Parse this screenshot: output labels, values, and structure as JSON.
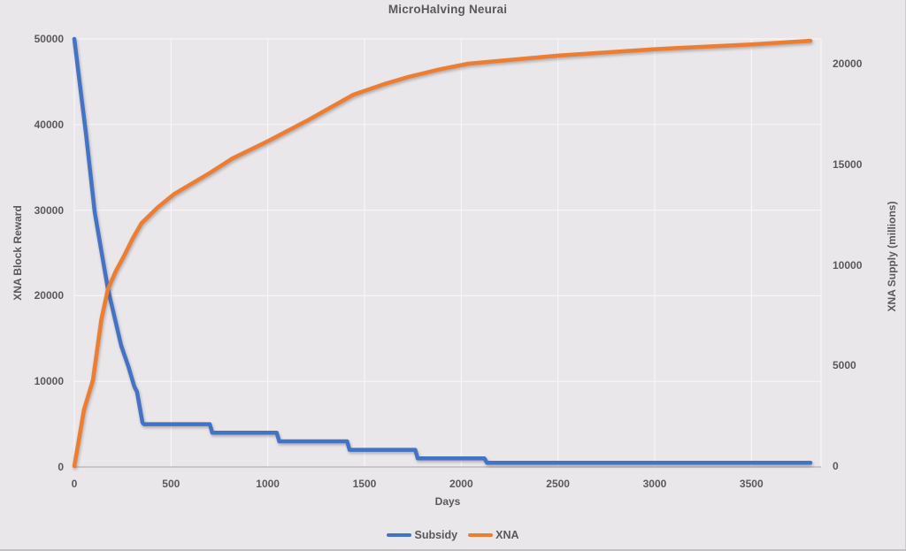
{
  "title": "MicroHalving Neurai",
  "colors": {
    "background": "#EAE7EA",
    "text": "#595959",
    "gridline": "#F7F5F7",
    "axis_line": "#BDBABD",
    "subsidy_blue": "#4472C4",
    "xna_orange": "#ED7D31"
  },
  "chart_data": {
    "type": "line",
    "title": "MicroHalving Neurai",
    "xlabel": "Days",
    "ylabel_left": "XNA Block Reward",
    "ylabel_right": "XNA Supply (millions)",
    "grid": true,
    "legend_position": "bottom",
    "xlim": [
      0,
      3860
    ],
    "ylim_left": [
      0,
      50000
    ],
    "ylim_right": [
      0,
      21250
    ],
    "x_ticks": [
      0,
      500,
      1000,
      1500,
      2000,
      2500,
      3000,
      3500
    ],
    "y_ticks_left": [
      0,
      10000,
      20000,
      30000,
      40000,
      50000
    ],
    "y_ticks_right": [
      0,
      5000,
      10000,
      15000,
      20000
    ],
    "series": [
      {
        "name": "Subsidy",
        "axis": "left",
        "color": "#4472C4",
        "points": [
          [
            0,
            50000
          ],
          [
            30,
            44400
          ],
          [
            60,
            39000
          ],
          [
            105,
            29800
          ],
          [
            140,
            25200
          ],
          [
            174,
            20800
          ],
          [
            210,
            17300
          ],
          [
            242,
            14200
          ],
          [
            280,
            11700
          ],
          [
            310,
            9400
          ],
          [
            324,
            8800
          ],
          [
            352,
            5200
          ],
          [
            360,
            5000
          ],
          [
            700,
            5000
          ],
          [
            713,
            4000
          ],
          [
            1046,
            4000
          ],
          [
            1059,
            3000
          ],
          [
            1410,
            3000
          ],
          [
            1423,
            2000
          ],
          [
            1762,
            2000
          ],
          [
            1775,
            1000
          ],
          [
            2120,
            1000
          ],
          [
            2133,
            500
          ],
          [
            3805,
            500
          ]
        ]
      },
      {
        "name": "XNA",
        "axis": "right",
        "color": "#ED7D31",
        "points": [
          [
            0,
            0
          ],
          [
            25,
            1400
          ],
          [
            50,
            2800
          ],
          [
            96,
            4270
          ],
          [
            140,
            7300
          ],
          [
            174,
            8800
          ],
          [
            215,
            9700
          ],
          [
            256,
            10430
          ],
          [
            300,
            11280
          ],
          [
            347,
            12070
          ],
          [
            430,
            12850
          ],
          [
            516,
            13520
          ],
          [
            700,
            14570
          ],
          [
            817,
            15290
          ],
          [
            1000,
            16150
          ],
          [
            1200,
            17150
          ],
          [
            1443,
            18460
          ],
          [
            1600,
            18980
          ],
          [
            1726,
            19340
          ],
          [
            1880,
            19700
          ],
          [
            2036,
            20000
          ],
          [
            2500,
            20400
          ],
          [
            3000,
            20720
          ],
          [
            3500,
            20960
          ],
          [
            3805,
            21140
          ]
        ]
      }
    ]
  },
  "legend": {
    "items": [
      {
        "label": "Subsidy"
      },
      {
        "label": "XNA"
      }
    ]
  }
}
